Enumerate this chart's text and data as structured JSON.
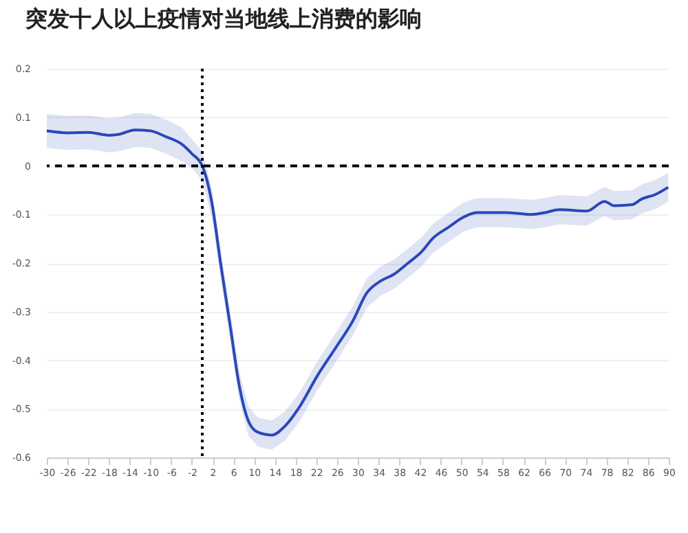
{
  "chart_data": {
    "type": "line",
    "title": "突发十人以上疫情对当地线上消费的影响",
    "x": [
      -30,
      -26,
      -22,
      -18,
      -16,
      -13,
      -10,
      -7,
      -4,
      -2,
      0,
      1.8,
      3.6,
      5.4,
      7.1,
      8.9,
      10.7,
      13.4,
      16,
      18.7,
      22.2,
      25.7,
      29.1,
      31.7,
      34.4,
      37,
      39.7,
      42.3,
      44.5,
      47.7,
      50.3,
      53,
      58.3,
      63.6,
      66.2,
      68.9,
      74.2,
      77.6,
      79.5,
      82.9,
      84.8,
      87.4,
      89.9
    ],
    "series": [
      {
        "color": "#2a48b8",
        "values": [
          0.072,
          0.068,
          0.069,
          0.063,
          0.065,
          0.074,
          0.072,
          0.06,
          0.045,
          0.025,
          0,
          -0.073,
          -0.205,
          -0.33,
          -0.45,
          -0.525,
          -0.548,
          -0.554,
          -0.535,
          -0.497,
          -0.432,
          -0.375,
          -0.318,
          -0.262,
          -0.237,
          -0.223,
          -0.2,
          -0.177,
          -0.149,
          -0.125,
          -0.106,
          -0.096,
          -0.096,
          -0.1,
          -0.096,
          -0.09,
          -0.093,
          -0.073,
          -0.082,
          -0.08,
          -0.068,
          -0.059,
          -0.044
        ],
        "lower": [
          0.037,
          0.033,
          0.034,
          0.028,
          0.03,
          0.039,
          0.037,
          0.025,
          0.01,
          -0.005,
          -0.03,
          -0.103,
          -0.235,
          -0.36,
          -0.48,
          -0.555,
          -0.578,
          -0.584,
          -0.565,
          -0.527,
          -0.462,
          -0.405,
          -0.348,
          -0.292,
          -0.267,
          -0.253,
          -0.23,
          -0.207,
          -0.179,
          -0.155,
          -0.136,
          -0.126,
          -0.126,
          -0.13,
          -0.126,
          -0.12,
          -0.123,
          -0.103,
          -0.112,
          -0.11,
          -0.098,
          -0.089,
          -0.074
        ],
        "upper": [
          0.107,
          0.103,
          0.104,
          0.098,
          0.1,
          0.109,
          0.107,
          0.095,
          0.08,
          0.055,
          0.03,
          -0.043,
          -0.175,
          -0.3,
          -0.42,
          -0.495,
          -0.518,
          -0.524,
          -0.505,
          -0.467,
          -0.402,
          -0.345,
          -0.288,
          -0.232,
          -0.207,
          -0.193,
          -0.17,
          -0.147,
          -0.119,
          -0.095,
          -0.076,
          -0.066,
          -0.066,
          -0.07,
          -0.066,
          -0.06,
          -0.063,
          -0.043,
          -0.052,
          -0.05,
          -0.038,
          -0.029,
          -0.014
        ]
      }
    ],
    "xlim": [
      -30,
      90
    ],
    "xticks": [
      -30,
      -26,
      -22,
      -18,
      -14,
      -10,
      -6,
      -2,
      2,
      6,
      10,
      14,
      18,
      22,
      26,
      30,
      34,
      38,
      42,
      46,
      50,
      54,
      58,
      62,
      66,
      70,
      74,
      78,
      82,
      86,
      90
    ],
    "ylim": [
      -0.6,
      0.2
    ],
    "yticks": [
      -0.6,
      -0.5,
      -0.4,
      -0.3,
      -0.2,
      -0.1,
      0,
      0.1,
      0.2
    ],
    "ref_lines": [
      {
        "axis": "x",
        "value": 0,
        "color": "#000000",
        "line_style": "dotted"
      },
      {
        "axis": "y",
        "value": 0,
        "color": "#000000",
        "line_style": "dashed"
      }
    ],
    "grid": "y",
    "line_style": "solid"
  }
}
